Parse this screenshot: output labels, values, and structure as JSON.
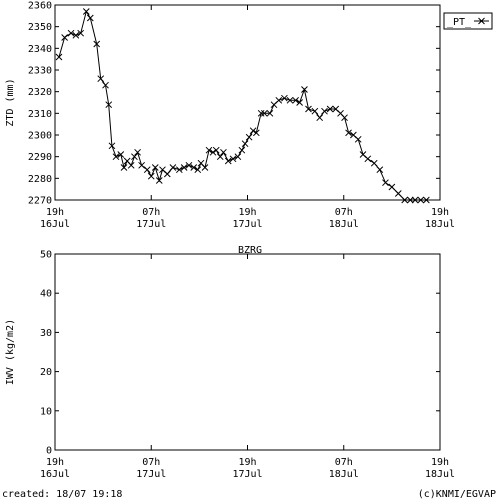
{
  "station": "BZRG",
  "footer": {
    "created": "created: 18/07 19:18",
    "credit": "(c)KNMI/EGVAP"
  },
  "colors": {
    "line": "#000000",
    "axis": "#000000",
    "background": "#ffffff"
  },
  "chart_data": [
    {
      "type": "line",
      "ylabel": "ZTD (mm)",
      "ylim": [
        2270,
        2360
      ],
      "yticks": [
        2270,
        2280,
        2290,
        2300,
        2310,
        2320,
        2330,
        2340,
        2350,
        2360
      ],
      "xlim": [
        0,
        48
      ],
      "xticks": [
        {
          "x": 0,
          "time": "19h",
          "date": "16Jul"
        },
        {
          "x": 12,
          "time": "07h",
          "date": "17Jul"
        },
        {
          "x": 24,
          "time": "19h",
          "date": "17Jul"
        },
        {
          "x": 36,
          "time": "07h",
          "date": "18Jul"
        },
        {
          "x": 48,
          "time": "19h",
          "date": "18Jul"
        }
      ],
      "legend": {
        "label": "_PT_",
        "position": "top-right"
      },
      "series": [
        {
          "name": "_PT_",
          "x": [
            0.5,
            1.2,
            2.0,
            2.6,
            3.2,
            3.9,
            4.4,
            5.2,
            5.7,
            6.3,
            6.7,
            7.1,
            7.6,
            8.2,
            8.6,
            9.0,
            9.5,
            9.9,
            10.3,
            10.8,
            11.5,
            12.0,
            12.5,
            13.0,
            13.4,
            14.0,
            14.7,
            15.5,
            16.1,
            16.7,
            17.3,
            17.8,
            18.2,
            18.7,
            19.2,
            19.7,
            20.1,
            20.6,
            21.0,
            21.6,
            22.2,
            22.8,
            23.3,
            23.7,
            24.2,
            24.7,
            25.1,
            25.7,
            26.1,
            26.8,
            27.3,
            27.9,
            28.6,
            29.3,
            30.0,
            30.5,
            31.1,
            31.6,
            32.4,
            33.0,
            33.6,
            34.3,
            35.0,
            35.6,
            36.1,
            36.6,
            37.2,
            37.8,
            38.4,
            39.0,
            39.8,
            40.5,
            41.2,
            42.0,
            42.8,
            43.6,
            44.3,
            44.9,
            45.6,
            46.3
          ],
          "y": [
            2336,
            2345,
            2347,
            2346,
            2347,
            2357,
            2354,
            2342,
            2326,
            2323,
            2314,
            2295,
            2290,
            2291,
            2285,
            2288,
            2286,
            2290,
            2292,
            2286,
            2284,
            2281,
            2285,
            2279,
            2284,
            2282,
            2285,
            2284,
            2285,
            2286,
            2285,
            2284,
            2287,
            2285,
            2293,
            2292,
            2293,
            2290,
            2292,
            2288,
            2289,
            2290,
            2293,
            2296,
            2299,
            2302,
            2301,
            2310,
            2310,
            2310,
            2314,
            2316,
            2317,
            2316,
            2316,
            2315,
            2321,
            2312,
            2311,
            2308,
            2311,
            2312,
            2312,
            2310,
            2308,
            2301,
            2300,
            2298,
            2291,
            2289,
            2287,
            2284,
            2278,
            2276,
            2273,
            2270,
            2270,
            2270,
            2270,
            2270
          ]
        }
      ]
    },
    {
      "type": "line",
      "title": "BZRG",
      "ylabel": "IWV (kg/m2)",
      "ylim": [
        0,
        50
      ],
      "yticks": [
        0,
        10,
        20,
        30,
        40,
        50
      ],
      "xlim": [
        0,
        48
      ],
      "xticks": [
        {
          "x": 0,
          "time": "19h",
          "date": "16Jul"
        },
        {
          "x": 12,
          "time": "07h",
          "date": "17Jul"
        },
        {
          "x": 24,
          "time": "19h",
          "date": "17Jul"
        },
        {
          "x": 36,
          "time": "07h",
          "date": "18Jul"
        },
        {
          "x": 48,
          "time": "19h",
          "date": "18Jul"
        }
      ],
      "series": []
    }
  ]
}
